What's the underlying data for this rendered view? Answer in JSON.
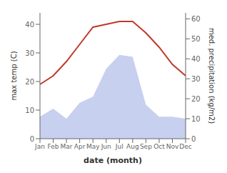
{
  "chart_data": {
    "type": "line",
    "xlabel": "date (month)",
    "ylabel": "max temp (C)",
    "y2label": "med. precipitation (kg/m2)",
    "categories": [
      "Jan",
      "Feb",
      "Mar",
      "Apr",
      "May",
      "Jun",
      "Jul",
      "Aug",
      "Sep",
      "Oct",
      "Nov",
      "Dec"
    ],
    "series": [
      {
        "type": "area",
        "axis": "y2",
        "color": "#c8d0f0",
        "values": [
          11,
          15,
          10,
          18,
          21,
          35,
          42,
          41,
          17,
          11,
          11,
          10
        ]
      },
      {
        "type": "line",
        "color": "#c0392b",
        "values": [
          19,
          22,
          27,
          33,
          39,
          40,
          41,
          41,
          37,
          32,
          26,
          22
        ]
      }
    ],
    "ylim": [
      0,
      44
    ],
    "yticks": [
      0,
      10,
      20,
      30,
      40
    ],
    "y2lim": [
      0,
      63
    ],
    "y2ticks": [
      0,
      10,
      20,
      30,
      40,
      50,
      60
    ]
  }
}
